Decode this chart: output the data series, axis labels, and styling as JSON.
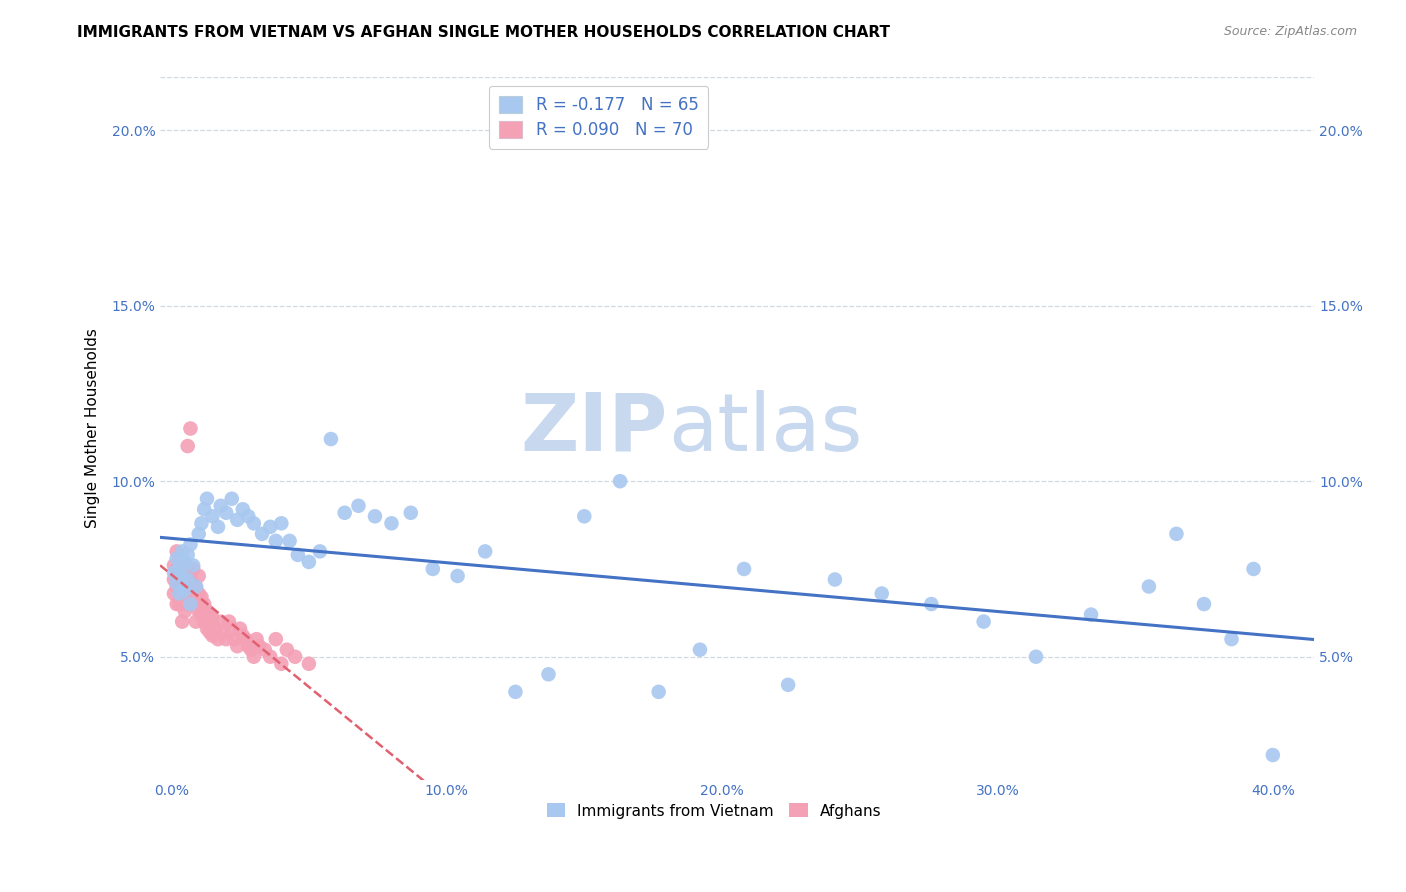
{
  "title": "IMMIGRANTS FROM VIETNAM VS AFGHAN SINGLE MOTHER HOUSEHOLDS CORRELATION CHART",
  "source": "Source: ZipAtlas.com",
  "ylabel": "Single Mother Households",
  "xlabel_ticks": [
    "0.0%",
    "10.0%",
    "20.0%",
    "30.0%",
    "40.0%"
  ],
  "xlabel_vals": [
    0.0,
    0.1,
    0.2,
    0.3,
    0.4
  ],
  "ylabel_ticks": [
    "5.0%",
    "10.0%",
    "15.0%",
    "20.0%"
  ],
  "ylabel_vals": [
    0.05,
    0.1,
    0.15,
    0.2
  ],
  "xlim": [
    -0.004,
    0.415
  ],
  "ylim": [
    0.015,
    0.215
  ],
  "vietnam_color": "#a8c8f0",
  "afghan_color": "#f4a0b5",
  "vietnam_line_color": "#4472c4",
  "afghan_line_color": "#e06070",
  "R_vietnam": -0.177,
  "N_vietnam": 65,
  "R_afghan": 0.09,
  "N_afghan": 70,
  "vietnam_x": [
    0.001,
    0.002,
    0.002,
    0.003,
    0.003,
    0.004,
    0.004,
    0.005,
    0.005,
    0.006,
    0.006,
    0.007,
    0.007,
    0.008,
    0.009,
    0.01,
    0.011,
    0.012,
    0.013,
    0.015,
    0.017,
    0.018,
    0.02,
    0.022,
    0.024,
    0.026,
    0.028,
    0.03,
    0.033,
    0.036,
    0.038,
    0.04,
    0.043,
    0.046,
    0.05,
    0.054,
    0.058,
    0.063,
    0.068,
    0.074,
    0.08,
    0.087,
    0.095,
    0.104,
    0.114,
    0.125,
    0.137,
    0.15,
    0.163,
    0.177,
    0.192,
    0.208,
    0.224,
    0.241,
    0.258,
    0.276,
    0.295,
    0.314,
    0.334,
    0.355,
    0.365,
    0.375,
    0.385,
    0.393,
    0.4
  ],
  "vietnam_y": [
    0.074,
    0.071,
    0.078,
    0.068,
    0.075,
    0.073,
    0.08,
    0.069,
    0.077,
    0.072,
    0.079,
    0.065,
    0.082,
    0.076,
    0.07,
    0.085,
    0.088,
    0.092,
    0.095,
    0.09,
    0.087,
    0.093,
    0.091,
    0.095,
    0.089,
    0.092,
    0.09,
    0.088,
    0.085,
    0.087,
    0.083,
    0.088,
    0.083,
    0.079,
    0.077,
    0.08,
    0.112,
    0.091,
    0.093,
    0.09,
    0.088,
    0.091,
    0.075,
    0.073,
    0.08,
    0.04,
    0.045,
    0.09,
    0.1,
    0.04,
    0.052,
    0.075,
    0.042,
    0.072,
    0.068,
    0.065,
    0.06,
    0.05,
    0.062,
    0.07,
    0.085,
    0.065,
    0.055,
    0.075,
    0.022
  ],
  "afghan_x": [
    0.001,
    0.001,
    0.001,
    0.002,
    0.002,
    0.002,
    0.002,
    0.003,
    0.003,
    0.003,
    0.003,
    0.004,
    0.004,
    0.004,
    0.004,
    0.005,
    0.005,
    0.005,
    0.005,
    0.006,
    0.006,
    0.006,
    0.006,
    0.007,
    0.007,
    0.007,
    0.007,
    0.008,
    0.008,
    0.008,
    0.009,
    0.009,
    0.009,
    0.01,
    0.01,
    0.01,
    0.011,
    0.011,
    0.012,
    0.012,
    0.013,
    0.013,
    0.014,
    0.014,
    0.015,
    0.015,
    0.016,
    0.017,
    0.018,
    0.019,
    0.02,
    0.021,
    0.022,
    0.023,
    0.024,
    0.025,
    0.026,
    0.027,
    0.028,
    0.029,
    0.03,
    0.031,
    0.032,
    0.034,
    0.036,
    0.038,
    0.04,
    0.042,
    0.045,
    0.05
  ],
  "afghan_y": [
    0.068,
    0.072,
    0.076,
    0.065,
    0.07,
    0.075,
    0.08,
    0.065,
    0.068,
    0.072,
    0.075,
    0.06,
    0.065,
    0.07,
    0.075,
    0.063,
    0.067,
    0.072,
    0.076,
    0.065,
    0.07,
    0.075,
    0.11,
    0.065,
    0.068,
    0.072,
    0.115,
    0.065,
    0.07,
    0.075,
    0.06,
    0.065,
    0.07,
    0.063,
    0.068,
    0.073,
    0.062,
    0.067,
    0.06,
    0.065,
    0.058,
    0.063,
    0.057,
    0.062,
    0.056,
    0.061,
    0.058,
    0.055,
    0.06,
    0.057,
    0.055,
    0.06,
    0.058,
    0.055,
    0.053,
    0.058,
    0.056,
    0.055,
    0.053,
    0.052,
    0.05,
    0.055,
    0.053,
    0.052,
    0.05,
    0.055,
    0.048,
    0.052,
    0.05,
    0.048
  ],
  "watermark_top": "ZIP",
  "watermark_bot": "atlas",
  "watermark_color": "#c8d8ee",
  "grid_color": "#d0d8e0",
  "title_fontsize": 11,
  "axis_label_color": "#4472c4",
  "legend_text_color": "#4472c4"
}
